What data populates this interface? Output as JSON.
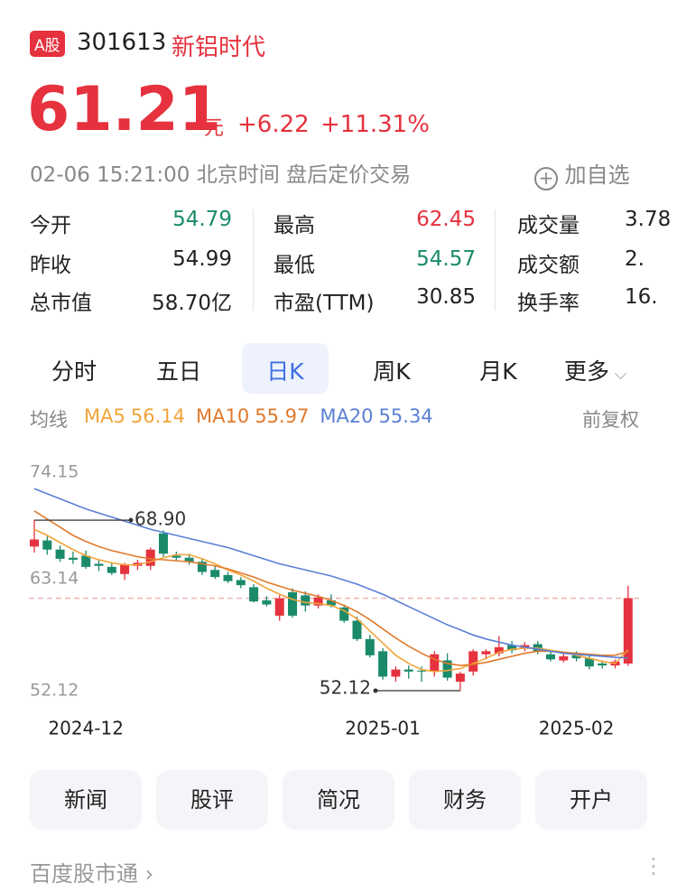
{
  "header": {
    "badge": "A股",
    "code": "301613",
    "name": "新铝时代"
  },
  "quote": {
    "price": 61.21,
    "unit": "元",
    "change": "+6.22",
    "change_pct": "+11.31%",
    "time": "02-06 15:21:00",
    "zone": "北京时间",
    "session": "盘后定价交易",
    "watch": "加自选"
  },
  "stats": [
    [
      {
        "label": "今开",
        "value": "54.79"
      },
      {
        "label": "最高",
        "value": "62.45"
      },
      {
        "label": "成交量",
        "value": "3.78"
      }
    ],
    [
      {
        "label": "昨收",
        "value": "54.99"
      },
      {
        "label": "最低",
        "value": "54.57"
      },
      {
        "label": "成交额",
        "value": "2."
      }
    ],
    [
      {
        "label": "总市值",
        "value": "58.70亿"
      },
      {
        "label": "市盈(TTM)",
        "value": "30.85"
      },
      {
        "label": "换手率",
        "value": "16."
      }
    ]
  ],
  "tabs": [
    "分时",
    "五日",
    "日K",
    "周K",
    "月K",
    "更多"
  ],
  "legend": {
    "title": "均线",
    "adjust": "前复权"
  },
  "chart_data": {
    "type": "candlestick",
    "ylim": [
      52.12,
      74.15
    ],
    "yticks": [
      74.15,
      63.14,
      52.12
    ],
    "categories": [
      null,
      null,
      null,
      null,
      "2024-12",
      null,
      null,
      null,
      null,
      null,
      null,
      null,
      null,
      null,
      null,
      null,
      null,
      null,
      null,
      null,
      null,
      null,
      null,
      null,
      null,
      null,
      null,
      "2025-01",
      null,
      null,
      null,
      null,
      null,
      null,
      null,
      null,
      null,
      null,
      null,
      null,
      null,
      null,
      "2025-02",
      null,
      null,
      null,
      null
    ],
    "up_color": "#e5323e",
    "down_color": "#1b8a6b",
    "open": [
      66.3,
      66.9,
      66.0,
      65.2,
      65.4,
      64.6,
      64.3,
      63.6,
      64.4,
      64.4,
      67.6,
      65.4,
      65.2,
      64.8,
      64.0,
      63.5,
      63.0,
      62.3,
      61.0,
      59.5,
      61.8,
      61.5,
      60.5,
      61.0,
      60.3,
      59.0,
      57.2,
      56.0,
      53.5,
      54.2,
      54.1,
      54.0,
      55.1,
      53.0,
      54.0,
      55.7,
      55.8,
      56.6,
      56.3,
      56.7,
      55.7,
      55.1,
      55.6,
      55.3,
      54.8,
      54.6,
      54.79
    ],
    "high": [
      68.9,
      67.3,
      66.4,
      65.8,
      65.9,
      65.0,
      64.7,
      64.7,
      65.0,
      66.2,
      67.9,
      65.8,
      65.6,
      65.1,
      64.4,
      63.8,
      63.3,
      62.6,
      61.4,
      61.5,
      62.2,
      61.9,
      61.6,
      61.6,
      60.6,
      59.4,
      57.6,
      56.3,
      54.5,
      54.6,
      54.5,
      56.0,
      55.8,
      54.0,
      56.2,
      56.2,
      57.5,
      57.0,
      56.9,
      57.0,
      56.0,
      55.8,
      56.0,
      55.6,
      55.1,
      55.2,
      62.45
    ],
    "low": [
      65.7,
      65.5,
      64.8,
      64.6,
      64.1,
      63.9,
      63.5,
      63.0,
      64.0,
      64.0,
      65.3,
      64.9,
      64.5,
      63.5,
      63.1,
      62.7,
      62.2,
      60.8,
      60.4,
      59.0,
      59.3,
      59.9,
      60.2,
      60.3,
      58.8,
      57.0,
      55.4,
      53.2,
      53.0,
      53.3,
      53.0,
      53.5,
      53.1,
      52.12,
      53.6,
      55.2,
      55.5,
      55.8,
      56.0,
      55.7,
      55.0,
      54.9,
      55.0,
      54.2,
      54.3,
      54.3,
      54.57
    ],
    "close": [
      67.0,
      66.0,
      65.1,
      65.0,
      64.3,
      64.4,
      63.7,
      64.5,
      64.7,
      66.0,
      65.6,
      65.2,
      64.8,
      63.8,
      63.3,
      62.9,
      62.5,
      60.9,
      60.6,
      61.2,
      59.5,
      60.5,
      61.3,
      60.5,
      59.0,
      57.2,
      55.6,
      53.5,
      54.2,
      54.0,
      54.0,
      55.7,
      53.4,
      53.8,
      56.0,
      56.0,
      56.4,
      56.1,
      56.6,
      56.0,
      55.2,
      55.5,
      55.3,
      54.5,
      54.6,
      54.99,
      61.21
    ],
    "series": [
      {
        "name": "MA5",
        "color": "#f2a43a",
        "values": [
          68.0,
          67.4,
          66.7,
          66.0,
          65.4,
          65.0,
          64.7,
          64.5,
          64.5,
          64.8,
          65.2,
          65.5,
          65.5,
          65.1,
          64.6,
          64.0,
          63.5,
          62.9,
          62.2,
          61.6,
          61.1,
          60.8,
          60.7,
          60.5,
          60.0,
          59.2,
          58.0,
          56.8,
          55.6,
          54.8,
          54.2,
          54.0,
          54.1,
          54.3,
          54.8,
          55.3,
          55.9,
          56.2,
          56.3,
          56.3,
          56.1,
          55.9,
          55.6,
          55.3,
          55.0,
          54.8,
          56.14
        ]
      },
      {
        "name": "MA10",
        "color": "#e07a2c",
        "values": [
          69.8,
          69.0,
          68.2,
          67.4,
          66.8,
          66.3,
          65.9,
          65.6,
          65.3,
          65.1,
          65.0,
          64.9,
          64.8,
          64.6,
          64.4,
          64.1,
          63.7,
          63.3,
          62.8,
          62.4,
          62.0,
          61.7,
          61.4,
          61.0,
          60.5,
          59.9,
          59.1,
          58.2,
          57.3,
          56.5,
          55.8,
          55.2,
          54.8,
          54.6,
          54.7,
          54.9,
          55.2,
          55.5,
          55.8,
          56.0,
          56.0,
          55.9,
          55.8,
          55.7,
          55.6,
          55.6,
          55.97
        ]
      },
      {
        "name": "MA20",
        "color": "#5a7fd6",
        "values": [
          72.0,
          71.5,
          71.0,
          70.5,
          70.0,
          69.6,
          69.2,
          68.8,
          68.4,
          68.0,
          67.7,
          67.4,
          67.1,
          66.8,
          66.5,
          66.2,
          65.8,
          65.4,
          65.0,
          64.6,
          64.3,
          64.0,
          63.7,
          63.4,
          63.0,
          62.6,
          62.1,
          61.6,
          61.0,
          60.4,
          59.8,
          59.2,
          58.6,
          58.1,
          57.6,
          57.2,
          56.9,
          56.6,
          56.4,
          56.2,
          56.0,
          55.8,
          55.7,
          55.6,
          55.5,
          55.4,
          55.34
        ]
      }
    ],
    "high_mark": {
      "value": 68.9,
      "label": "68.90"
    },
    "low_mark": 52.12
  },
  "buttons": [
    "新闻",
    "股评",
    "简况",
    "财务",
    "开户"
  ],
  "footer": "百度股市通"
}
